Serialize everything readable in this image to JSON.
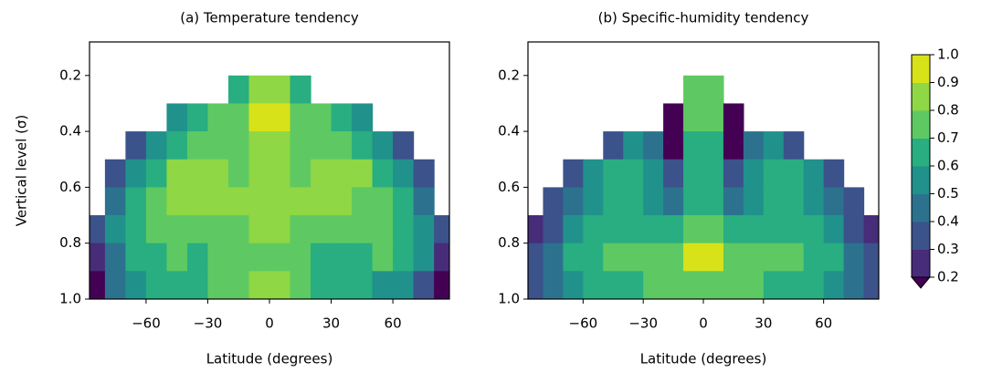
{
  "chart_data": [
    {
      "type": "contour",
      "title": "(a) Temperature tendency",
      "xlabel": "Latitude (degrees)",
      "ylabel": "Vertical level (σ)",
      "xlim": [
        -87.5,
        87.5
      ],
      "ylim": [
        1.0,
        0.08
      ],
      "xticks": [
        {
          "value": -60,
          "label": "−60"
        },
        {
          "value": -30,
          "label": "−30"
        },
        0,
        30,
        60
      ],
      "yticks": [
        0.2,
        0.4,
        0.6,
        0.8,
        {
          "value": 1.0,
          "label": "1.0"
        }
      ],
      "x": [
        -85,
        -75,
        -65,
        -55,
        -45,
        -35,
        -25,
        -15,
        -5,
        5,
        15,
        25,
        35,
        45,
        55,
        65,
        75,
        85
      ],
      "y": [
        0.15,
        0.25,
        0.35,
        0.45,
        0.55,
        0.65,
        0.75,
        0.85,
        0.95
      ],
      "z": [
        [
          null,
          null,
          null,
          null,
          null,
          null,
          null,
          null,
          null,
          null,
          null,
          null,
          null,
          null,
          null,
          null,
          null,
          null
        ],
        [
          null,
          null,
          null,
          null,
          null,
          null,
          null,
          0.6,
          0.8,
          0.8,
          0.6,
          null,
          null,
          null,
          null,
          null,
          null,
          null
        ],
        [
          null,
          null,
          null,
          null,
          0.5,
          0.6,
          0.7,
          0.75,
          0.9,
          0.9,
          0.75,
          0.7,
          0.6,
          0.5,
          null,
          null,
          null,
          null
        ],
        [
          null,
          null,
          0.3,
          0.5,
          0.65,
          0.75,
          0.75,
          0.7,
          0.85,
          0.85,
          0.7,
          0.75,
          0.75,
          0.65,
          0.5,
          0.3,
          null,
          null
        ],
        [
          null,
          0.3,
          0.5,
          0.65,
          0.8,
          0.82,
          0.82,
          0.75,
          0.82,
          0.82,
          0.75,
          0.82,
          0.82,
          0.8,
          0.65,
          0.5,
          0.3,
          null
        ],
        [
          null,
          0.4,
          0.6,
          0.72,
          0.8,
          0.82,
          0.82,
          0.8,
          0.82,
          0.82,
          0.8,
          0.82,
          0.82,
          0.78,
          0.72,
          0.6,
          0.4,
          null
        ],
        [
          0.3,
          0.5,
          0.65,
          0.72,
          0.75,
          0.78,
          0.72,
          0.78,
          0.82,
          0.82,
          0.78,
          0.75,
          0.72,
          0.75,
          0.72,
          0.65,
          0.5,
          0.3
        ],
        [
          0.2,
          0.45,
          0.6,
          0.65,
          0.7,
          0.65,
          0.7,
          0.72,
          0.75,
          0.75,
          0.72,
          0.65,
          0.65,
          0.6,
          0.7,
          0.65,
          0.5,
          0.2
        ],
        [
          0.15,
          0.4,
          0.55,
          0.6,
          0.6,
          0.65,
          0.7,
          0.72,
          0.8,
          0.8,
          0.72,
          0.65,
          0.65,
          0.6,
          0.55,
          0.5,
          0.35,
          0.15
        ]
      ]
    },
    {
      "type": "contour",
      "title": "(b) Specific-humidity tendency",
      "xlabel": "Latitude (degrees)",
      "xlim": [
        -87.5,
        87.5
      ],
      "ylim": [
        1.0,
        0.08
      ],
      "xticks": [
        {
          "value": -60,
          "label": "−60"
        },
        {
          "value": -30,
          "label": "−30"
        },
        0,
        30,
        60
      ],
      "yticks": [
        0.2,
        0.4,
        0.6,
        0.8,
        {
          "value": 1.0,
          "label": "1.0"
        }
      ],
      "x": [
        -85,
        -75,
        -65,
        -55,
        -45,
        -35,
        -25,
        -15,
        -5,
        5,
        15,
        25,
        35,
        45,
        55,
        65,
        75,
        85
      ],
      "y": [
        0.15,
        0.25,
        0.35,
        0.45,
        0.55,
        0.65,
        0.75,
        0.85,
        0.95
      ],
      "z": [
        [
          null,
          null,
          null,
          null,
          null,
          null,
          null,
          null,
          null,
          null,
          null,
          null,
          null,
          null,
          null,
          null,
          null,
          null
        ],
        [
          null,
          null,
          null,
          null,
          null,
          null,
          null,
          null,
          0.75,
          0.75,
          null,
          null,
          null,
          null,
          null,
          null,
          null,
          null
        ],
        [
          null,
          null,
          null,
          null,
          null,
          null,
          null,
          0.1,
          0.75,
          0.75,
          0.1,
          null,
          null,
          null,
          null,
          null,
          null,
          null
        ],
        [
          null,
          null,
          null,
          null,
          0.35,
          0.5,
          0.4,
          0.15,
          0.6,
          0.6,
          0.15,
          0.4,
          0.5,
          0.35,
          null,
          null,
          null,
          null
        ],
        [
          null,
          null,
          0.35,
          0.5,
          0.6,
          0.62,
          0.5,
          0.3,
          0.6,
          0.6,
          0.3,
          0.5,
          0.62,
          0.6,
          0.5,
          0.35,
          null,
          null
        ],
        [
          null,
          0.3,
          0.45,
          0.55,
          0.62,
          0.62,
          0.55,
          0.45,
          0.62,
          0.62,
          0.45,
          0.55,
          0.62,
          0.62,
          0.55,
          0.45,
          0.3,
          null
        ],
        [
          0.2,
          0.35,
          0.5,
          0.6,
          0.62,
          0.62,
          0.62,
          0.6,
          0.72,
          0.72,
          0.6,
          0.62,
          0.62,
          0.62,
          0.6,
          0.5,
          0.35,
          0.2
        ],
        [
          0.3,
          0.45,
          0.6,
          0.68,
          0.72,
          0.75,
          0.75,
          0.78,
          0.9,
          0.9,
          0.78,
          0.75,
          0.75,
          0.72,
          0.68,
          0.6,
          0.45,
          0.3
        ],
        [
          0.35,
          0.45,
          0.55,
          0.62,
          0.65,
          0.68,
          0.7,
          0.72,
          0.78,
          0.78,
          0.72,
          0.7,
          0.68,
          0.65,
          0.62,
          0.55,
          0.45,
          0.35
        ]
      ]
    },
    {
      "type": "colorbar",
      "levels": [
        0.2,
        0.3,
        0.4,
        0.5,
        0.6,
        0.7,
        0.8,
        0.9,
        1.0
      ],
      "colors": [
        "#472c7a",
        "#3b528b",
        "#2c728e",
        "#21918c",
        "#28ae80",
        "#5ec962",
        "#8fd744",
        "#d8e219"
      ],
      "under_color": "#440154",
      "ticks": [
        0.2,
        0.3,
        0.4,
        0.5,
        0.6,
        0.7,
        0.8,
        0.9,
        {
          "value": 1.0,
          "label": "1.0"
        }
      ]
    }
  ]
}
